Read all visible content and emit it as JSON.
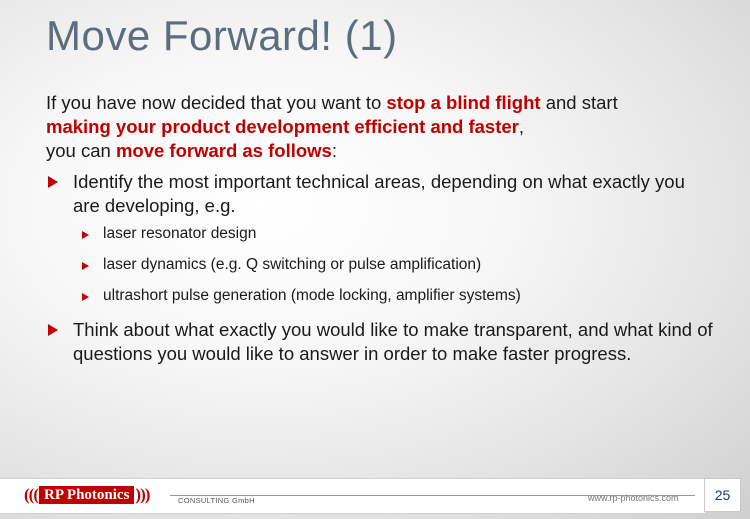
{
  "slide": {
    "title": "Move Forward! (1)",
    "intro": {
      "p1": "If you have now decided that you want to ",
      "h1": "stop a blind flight",
      "p2": " and start ",
      "h2": "making your product development efficient and faster",
      "p3": ",",
      "p4": "you can ",
      "h3": "move forward as follows",
      "p5": ":"
    },
    "bullets": [
      {
        "text": "Identify the most important technical areas, depending on what exactly you are developing, e.g.",
        "subitems": [
          "laser resonator design",
          "laser dynamics (e.g. Q switching or pulse amplification)",
          "ultrashort pulse generation (mode locking, amplifier systems)"
        ]
      },
      {
        "text": "Think about what exactly you would like to make transparent, and what kind of questions you would like to answer in order to make faster progress."
      }
    ]
  },
  "footer": {
    "logo_parens_left": "(((",
    "logo_text": "RP Photonics",
    "logo_parens_right": ")))",
    "consulting": "CONSULTING GmbH",
    "website": "www.rp-photonics.com",
    "page_number": "25"
  },
  "colors": {
    "accent": "#c00000",
    "title": "#5d6d7e",
    "page_number": "#1f3864"
  }
}
